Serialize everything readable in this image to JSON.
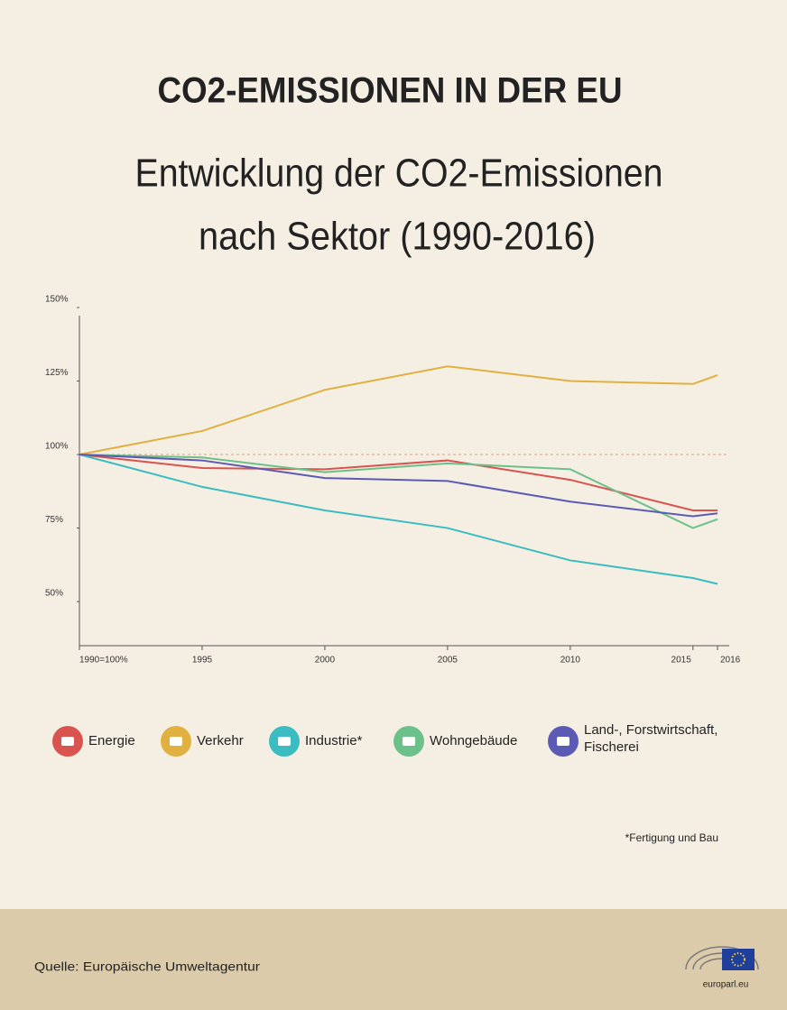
{
  "chart_data": {
    "type": "line",
    "title": "CO2-EMISSIONEN IN DER EU",
    "subtitle": [
      "Entwicklung der CO2-Emissionen",
      "nach Sektor (1990-2016)"
    ],
    "x": [
      1990,
      1995,
      2000,
      2005,
      2010,
      2015,
      2016
    ],
    "xlim": [
      1990,
      2016
    ],
    "xticks": [
      {
        "value": 1990,
        "label": "1990=100%"
      },
      1995,
      2000,
      2005,
      2010,
      2015,
      2016
    ],
    "ylim": [
      35,
      150
    ],
    "yticks": [
      {
        "value": 150,
        "label": "150%"
      },
      {
        "value": 125,
        "label": "125%"
      },
      {
        "value": 100,
        "label": "100%"
      },
      {
        "value": 75,
        "label": "75%"
      },
      {
        "value": 50,
        "label": "50%"
      }
    ],
    "reference_line": 100,
    "series": [
      {
        "name": "Energie",
        "color": "#d9534f",
        "values": [
          100,
          95.4,
          95,
          98,
          91.4,
          81,
          81
        ]
      },
      {
        "name": "Verkehr",
        "color": "#e0b040",
        "values": [
          100,
          108,
          122,
          130,
          125,
          124,
          127
        ]
      },
      {
        "name": "Industrie*",
        "color": "#3bbcc0",
        "values": [
          100,
          89,
          81,
          75,
          64,
          58,
          56
        ]
      },
      {
        "name": "Wohngebäude",
        "color": "#6cc08a",
        "values": [
          100,
          99,
          94,
          97,
          95,
          75,
          78
        ]
      },
      {
        "name": "Land-, Forstwirtschaft, Fischerei",
        "color": "#5b5bb5",
        "values": [
          100,
          98,
          92,
          91,
          84,
          79,
          80
        ]
      }
    ],
    "footnote": "*Fertigung und Bau",
    "source": "Quelle: Europäische Umweltagentur",
    "logo_text": "europarl.eu"
  }
}
